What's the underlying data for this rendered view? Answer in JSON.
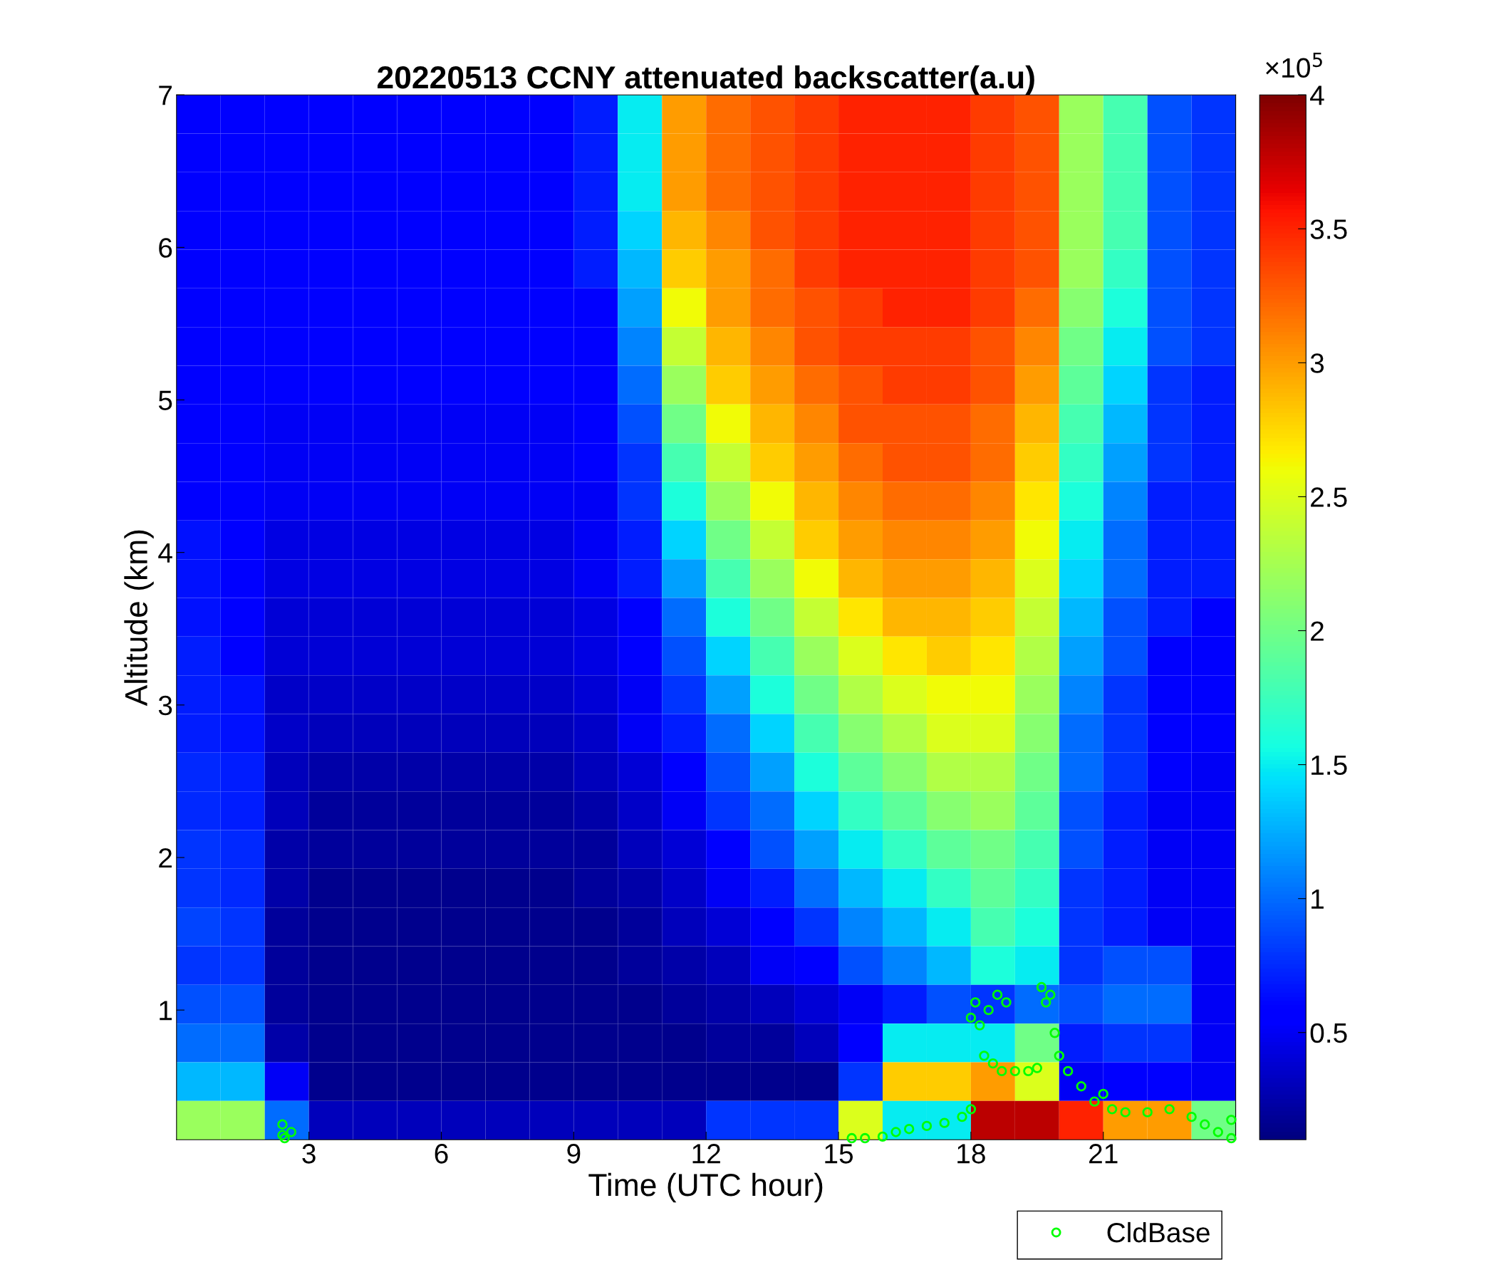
{
  "chart_data": {
    "type": "heatmap",
    "title": "20220513 CCNY attenuated backscatter(a.u)",
    "xlabel": "Time (UTC hour)",
    "ylabel": "Altitude (km)",
    "xlim": [
      0,
      24
    ],
    "xticks": [
      3,
      6,
      9,
      12,
      15,
      18,
      21
    ],
    "ylim": [
      0.15,
      7
    ],
    "yticks": [
      1,
      2,
      3,
      4,
      5,
      6,
      7
    ],
    "clim": [
      0.1,
      4
    ],
    "cticks": [
      0.5,
      1,
      1.5,
      2,
      2.5,
      3,
      3.5,
      4
    ],
    "annotations": [
      "×10$^{5}$"
    ],
    "grid": false,
    "legend": "bottom right",
    "cells": [
      [
        0.6,
        0.6,
        0.6,
        0.6,
        0.6,
        0.6,
        0.6,
        0.6,
        0.6,
        0.7,
        1.5,
        3.0,
        3.2,
        3.3,
        3.4,
        3.5,
        3.5,
        3.5,
        3.4,
        3.3,
        2.2,
        1.8,
        0.9,
        0.8
      ],
      [
        0.6,
        0.6,
        0.6,
        0.6,
        0.6,
        0.6,
        0.6,
        0.6,
        0.6,
        0.7,
        1.5,
        3.0,
        3.2,
        3.3,
        3.4,
        3.5,
        3.5,
        3.5,
        3.4,
        3.3,
        2.2,
        1.8,
        0.9,
        0.8
      ],
      [
        0.6,
        0.6,
        0.6,
        0.6,
        0.6,
        0.6,
        0.6,
        0.6,
        0.6,
        0.7,
        1.5,
        3.0,
        3.2,
        3.3,
        3.4,
        3.5,
        3.5,
        3.5,
        3.4,
        3.3,
        2.2,
        1.8,
        0.9,
        0.8
      ],
      [
        0.6,
        0.6,
        0.6,
        0.6,
        0.6,
        0.6,
        0.6,
        0.6,
        0.6,
        0.7,
        1.4,
        2.9,
        3.1,
        3.3,
        3.4,
        3.5,
        3.5,
        3.5,
        3.4,
        3.3,
        2.2,
        1.8,
        0.9,
        0.8
      ],
      [
        0.6,
        0.6,
        0.6,
        0.6,
        0.6,
        0.6,
        0.6,
        0.6,
        0.6,
        0.7,
        1.3,
        2.8,
        3.0,
        3.2,
        3.4,
        3.5,
        3.5,
        3.5,
        3.4,
        3.3,
        2.2,
        1.7,
        0.9,
        0.8
      ],
      [
        0.6,
        0.6,
        0.6,
        0.6,
        0.6,
        0.6,
        0.6,
        0.6,
        0.6,
        0.6,
        1.2,
        2.6,
        3.0,
        3.2,
        3.3,
        3.4,
        3.5,
        3.5,
        3.4,
        3.2,
        2.1,
        1.6,
        0.9,
        0.8
      ],
      [
        0.6,
        0.6,
        0.6,
        0.6,
        0.6,
        0.6,
        0.6,
        0.6,
        0.6,
        0.6,
        1.1,
        2.4,
        2.9,
        3.1,
        3.3,
        3.4,
        3.4,
        3.4,
        3.3,
        3.1,
        2.0,
        1.5,
        0.9,
        0.8
      ],
      [
        0.6,
        0.6,
        0.55,
        0.55,
        0.55,
        0.55,
        0.55,
        0.55,
        0.55,
        0.6,
        1.0,
        2.2,
        2.8,
        3.0,
        3.2,
        3.3,
        3.4,
        3.4,
        3.3,
        3.0,
        1.9,
        1.4,
        0.8,
        0.7
      ],
      [
        0.6,
        0.6,
        0.5,
        0.5,
        0.5,
        0.5,
        0.5,
        0.5,
        0.5,
        0.6,
        0.9,
        2.0,
        2.6,
        2.9,
        3.1,
        3.3,
        3.3,
        3.3,
        3.2,
        2.9,
        1.8,
        1.3,
        0.8,
        0.7
      ],
      [
        0.6,
        0.6,
        0.5,
        0.5,
        0.5,
        0.5,
        0.5,
        0.5,
        0.5,
        0.55,
        0.8,
        1.8,
        2.4,
        2.8,
        3.0,
        3.2,
        3.3,
        3.3,
        3.2,
        2.8,
        1.7,
        1.2,
        0.8,
        0.7
      ],
      [
        0.6,
        0.6,
        0.5,
        0.5,
        0.5,
        0.5,
        0.5,
        0.5,
        0.5,
        0.5,
        0.8,
        1.6,
        2.2,
        2.6,
        2.9,
        3.1,
        3.2,
        3.2,
        3.1,
        2.7,
        1.6,
        1.1,
        0.7,
        0.7
      ],
      [
        0.65,
        0.6,
        0.45,
        0.45,
        0.45,
        0.45,
        0.45,
        0.45,
        0.45,
        0.5,
        0.7,
        1.4,
        2.0,
        2.4,
        2.8,
        3.0,
        3.1,
        3.1,
        3.0,
        2.6,
        1.5,
        1.0,
        0.7,
        0.7
      ],
      [
        0.65,
        0.6,
        0.45,
        0.45,
        0.45,
        0.45,
        0.45,
        0.45,
        0.45,
        0.5,
        0.7,
        1.2,
        1.8,
        2.2,
        2.6,
        2.9,
        3.0,
        3.0,
        2.9,
        2.5,
        1.4,
        1.0,
        0.7,
        0.7
      ],
      [
        0.65,
        0.6,
        0.4,
        0.4,
        0.4,
        0.4,
        0.4,
        0.4,
        0.4,
        0.45,
        0.6,
        1.0,
        1.6,
        2.0,
        2.4,
        2.7,
        2.9,
        2.9,
        2.8,
        2.4,
        1.3,
        0.9,
        0.7,
        0.6
      ],
      [
        0.7,
        0.6,
        0.4,
        0.4,
        0.4,
        0.4,
        0.4,
        0.4,
        0.4,
        0.45,
        0.6,
        0.9,
        1.4,
        1.8,
        2.2,
        2.5,
        2.7,
        2.8,
        2.7,
        2.3,
        1.2,
        0.9,
        0.6,
        0.6
      ],
      [
        0.7,
        0.65,
        0.35,
        0.35,
        0.35,
        0.35,
        0.35,
        0.35,
        0.35,
        0.4,
        0.5,
        0.8,
        1.2,
        1.6,
        2.0,
        2.3,
        2.5,
        2.6,
        2.6,
        2.2,
        1.1,
        0.8,
        0.6,
        0.6
      ],
      [
        0.7,
        0.65,
        0.35,
        0.3,
        0.3,
        0.3,
        0.3,
        0.3,
        0.3,
        0.35,
        0.5,
        0.7,
        1.0,
        1.4,
        1.8,
        2.1,
        2.3,
        2.5,
        2.5,
        2.1,
        1.0,
        0.8,
        0.6,
        0.6
      ],
      [
        0.75,
        0.7,
        0.3,
        0.25,
        0.25,
        0.25,
        0.25,
        0.25,
        0.25,
        0.3,
        0.4,
        0.6,
        0.9,
        1.2,
        1.6,
        1.9,
        2.1,
        2.3,
        2.3,
        2.0,
        1.0,
        0.8,
        0.6,
        0.5
      ],
      [
        0.75,
        0.7,
        0.3,
        0.2,
        0.2,
        0.2,
        0.2,
        0.2,
        0.2,
        0.25,
        0.35,
        0.5,
        0.8,
        1.0,
        1.4,
        1.7,
        1.9,
        2.1,
        2.2,
        1.9,
        0.9,
        0.7,
        0.5,
        0.5
      ],
      [
        0.8,
        0.75,
        0.25,
        0.2,
        0.2,
        0.2,
        0.2,
        0.2,
        0.2,
        0.2,
        0.3,
        0.4,
        0.6,
        0.9,
        1.2,
        1.5,
        1.7,
        1.9,
        2.0,
        1.8,
        0.9,
        0.7,
        0.5,
        0.5
      ],
      [
        0.8,
        0.75,
        0.25,
        0.15,
        0.15,
        0.15,
        0.15,
        0.15,
        0.15,
        0.2,
        0.25,
        0.35,
        0.5,
        0.7,
        1.0,
        1.3,
        1.5,
        1.7,
        1.9,
        1.7,
        0.8,
        0.7,
        0.5,
        0.5
      ],
      [
        0.85,
        0.8,
        0.2,
        0.15,
        0.15,
        0.15,
        0.15,
        0.15,
        0.15,
        0.15,
        0.2,
        0.3,
        0.4,
        0.6,
        0.8,
        1.1,
        1.3,
        1.5,
        1.8,
        1.6,
        0.8,
        0.7,
        0.5,
        0.5
      ],
      [
        0.8,
        0.8,
        0.2,
        0.15,
        0.15,
        0.15,
        0.15,
        0.15,
        0.15,
        0.15,
        0.2,
        0.25,
        0.3,
        0.5,
        0.6,
        0.9,
        1.1,
        1.3,
        1.6,
        1.5,
        0.8,
        0.9,
        0.9,
        0.5
      ],
      [
        0.9,
        0.9,
        0.2,
        0.15,
        0.15,
        0.15,
        0.15,
        0.15,
        0.15,
        0.15,
        0.15,
        0.2,
        0.25,
        0.3,
        0.4,
        0.5,
        0.7,
        0.9,
        0.8,
        1.0,
        0.9,
        1.0,
        1.0,
        0.5
      ],
      [
        1.0,
        1.0,
        0.25,
        0.15,
        0.15,
        0.15,
        0.15,
        0.15,
        0.15,
        0.15,
        0.15,
        0.15,
        0.2,
        0.2,
        0.3,
        0.6,
        1.5,
        1.5,
        1.5,
        2.0,
        0.7,
        0.8,
        0.8,
        0.5
      ],
      [
        1.3,
        1.3,
        0.5,
        0.15,
        0.15,
        0.15,
        0.15,
        0.15,
        0.15,
        0.15,
        0.15,
        0.15,
        0.15,
        0.15,
        0.15,
        0.8,
        2.8,
        2.8,
        3.0,
        2.5,
        0.5,
        0.6,
        0.6,
        0.5
      ],
      [
        2.2,
        2.2,
        1.0,
        0.3,
        0.3,
        0.3,
        0.3,
        0.3,
        0.3,
        0.3,
        0.3,
        0.3,
        0.8,
        0.8,
        0.8,
        2.5,
        1.5,
        1.5,
        3.8,
        3.8,
        3.5,
        3.0,
        3.0,
        2.0
      ]
    ],
    "series": [
      {
        "type": "scatter",
        "name": "CldBase",
        "color": "#00ff00",
        "marker": "circle",
        "x": [
          2.4,
          2.4,
          2.45,
          2.6,
          15.3,
          15.6,
          16.0,
          16.3,
          16.6,
          17.0,
          17.4,
          17.8,
          18.0,
          18.0,
          18.1,
          18.2,
          18.3,
          18.4,
          18.5,
          18.6,
          18.7,
          18.8,
          19.0,
          19.3,
          19.5,
          19.6,
          19.7,
          19.8,
          19.9,
          20.0,
          20.2,
          20.5,
          20.8,
          21.0,
          21.2,
          21.5,
          22.0,
          22.5,
          23.0,
          23.3,
          23.6,
          23.9,
          23.9
        ],
        "values": [
          0.25,
          0.18,
          0.16,
          0.2,
          0.16,
          0.16,
          0.17,
          0.2,
          0.22,
          0.24,
          0.26,
          0.3,
          0.35,
          0.95,
          1.05,
          0.9,
          0.7,
          1.0,
          0.65,
          1.1,
          0.6,
          1.05,
          0.6,
          0.6,
          0.62,
          1.15,
          1.05,
          1.1,
          0.85,
          0.7,
          0.6,
          0.5,
          0.4,
          0.45,
          0.35,
          0.33,
          0.33,
          0.35,
          0.3,
          0.25,
          0.2,
          0.16,
          0.28
        ]
      }
    ]
  }
}
